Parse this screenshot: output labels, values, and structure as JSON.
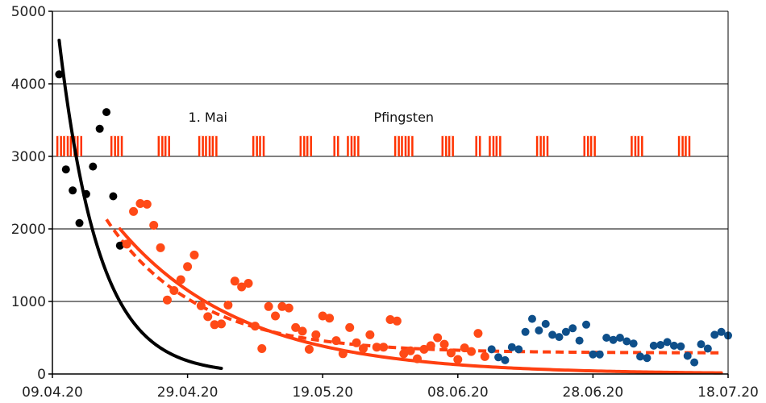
{
  "chart_data": {
    "type": "scatter",
    "title": "",
    "xlabel": "",
    "ylabel": "",
    "xlim_days": [
      0,
      100
    ],
    "ylim": [
      0,
      5000
    ],
    "grid": true,
    "y_ticks": [
      {
        "value": 0,
        "label": "0"
      },
      {
        "value": 1000,
        "label": "1000"
      },
      {
        "value": 2000,
        "label": "2000"
      },
      {
        "value": 3000,
        "label": "3000"
      },
      {
        "value": 4000,
        "label": "4000"
      },
      {
        "value": 5000,
        "label": "5000"
      }
    ],
    "x_ticks": [
      {
        "day": 0,
        "label": "09.04.20"
      },
      {
        "day": 20,
        "label": "29.04.20"
      },
      {
        "day": 40,
        "label": "19.05.20"
      },
      {
        "day": 60,
        "label": "08.06.20"
      },
      {
        "day": 80,
        "label": "28.06.20"
      },
      {
        "day": 100,
        "label": "18.07.20"
      }
    ],
    "annotations": [
      {
        "text": "1. Mai",
        "day": 23,
        "y": 3480
      },
      {
        "text": "Pfingsten",
        "day": 52,
        "y": 3480
      }
    ],
    "marker_band": {
      "y_low": 3000,
      "y_high": 3280,
      "color": "#ff3300",
      "days": [
        1,
        2,
        3,
        4,
        9,
        10,
        16,
        17,
        22,
        23,
        24,
        30,
        31,
        37,
        38,
        42,
        44,
        45,
        51,
        52,
        53,
        58,
        59,
        63,
        65,
        66,
        72,
        73,
        79,
        80,
        86,
        87,
        93,
        94
      ]
    },
    "series": [
      {
        "name": "black points",
        "color": "#000000",
        "points": [
          [
            1,
            4130
          ],
          [
            2,
            2820
          ],
          [
            3,
            2530
          ],
          [
            4,
            2080
          ],
          [
            5,
            2480
          ],
          [
            6,
            2860
          ],
          [
            7,
            3380
          ],
          [
            8,
            3610
          ],
          [
            9,
            2450
          ],
          [
            10,
            1770
          ]
        ]
      },
      {
        "name": "orange points",
        "color": "#ff4a17",
        "points": [
          [
            11,
            1790
          ],
          [
            12,
            2240
          ],
          [
            13,
            2350
          ],
          [
            14,
            2340
          ],
          [
            15,
            2050
          ],
          [
            16,
            1740
          ],
          [
            17,
            1020
          ],
          [
            18,
            1150
          ],
          [
            19,
            1300
          ],
          [
            20,
            1480
          ],
          [
            21,
            1640
          ],
          [
            22,
            940
          ],
          [
            23,
            790
          ],
          [
            24,
            680
          ],
          [
            25,
            690
          ],
          [
            26,
            950
          ],
          [
            27,
            1280
          ],
          [
            28,
            1200
          ],
          [
            29,
            1250
          ],
          [
            30,
            660
          ],
          [
            31,
            350
          ],
          [
            32,
            930
          ],
          [
            33,
            800
          ],
          [
            34,
            930
          ],
          [
            35,
            910
          ],
          [
            36,
            640
          ],
          [
            37,
            590
          ],
          [
            38,
            340
          ],
          [
            39,
            540
          ],
          [
            40,
            800
          ],
          [
            41,
            770
          ],
          [
            42,
            460
          ],
          [
            43,
            280
          ],
          [
            44,
            640
          ],
          [
            45,
            430
          ],
          [
            46,
            350
          ],
          [
            47,
            540
          ],
          [
            48,
            370
          ],
          [
            49,
            370
          ],
          [
            50,
            750
          ],
          [
            51,
            730
          ],
          [
            52,
            280
          ],
          [
            53,
            320
          ],
          [
            54,
            210
          ],
          [
            55,
            340
          ],
          [
            56,
            390
          ],
          [
            57,
            500
          ],
          [
            58,
            410
          ],
          [
            59,
            290
          ],
          [
            60,
            200
          ],
          [
            61,
            360
          ],
          [
            62,
            310
          ],
          [
            63,
            560
          ],
          [
            64,
            240
          ]
        ],
        "big_dots": true
      },
      {
        "name": "blue points",
        "color": "#0e4f8a",
        "points": [
          [
            65,
            340
          ],
          [
            66,
            230
          ],
          [
            67,
            190
          ],
          [
            68,
            370
          ],
          [
            69,
            340
          ],
          [
            70,
            580
          ],
          [
            71,
            760
          ],
          [
            72,
            600
          ],
          [
            73,
            690
          ],
          [
            74,
            540
          ],
          [
            75,
            510
          ],
          [
            76,
            580
          ],
          [
            77,
            630
          ],
          [
            78,
            460
          ],
          [
            79,
            680
          ],
          [
            80,
            270
          ],
          [
            81,
            270
          ],
          [
            82,
            500
          ],
          [
            83,
            470
          ],
          [
            84,
            500
          ],
          [
            85,
            450
          ],
          [
            86,
            420
          ],
          [
            87,
            240
          ],
          [
            88,
            220
          ],
          [
            89,
            390
          ],
          [
            90,
            400
          ],
          [
            91,
            440
          ],
          [
            92,
            390
          ],
          [
            93,
            380
          ],
          [
            94,
            250
          ],
          [
            95,
            160
          ],
          [
            96,
            410
          ],
          [
            97,
            350
          ],
          [
            98,
            540
          ],
          [
            99,
            580
          ],
          [
            100,
            530
          ]
        ]
      }
    ],
    "curves": [
      {
        "name": "black fit",
        "color": "#000000",
        "style": "solid",
        "kind": "exp_decay",
        "a": 4600,
        "k": 0.17,
        "start_day": 1,
        "end_day": 25
      },
      {
        "name": "orange fit",
        "color": "#ff3f10",
        "style": "solid",
        "kind": "exp_decay",
        "a": 2000,
        "k": 0.055,
        "start_day": 10,
        "end_day": 99
      },
      {
        "name": "orange dashed fit",
        "color": "#ff3f10",
        "style": "dashed",
        "kind": "exp_decay_offset",
        "a": 2130,
        "k": 0.075,
        "offset": 290,
        "start_day": 8,
        "end_day": 99
      }
    ]
  }
}
